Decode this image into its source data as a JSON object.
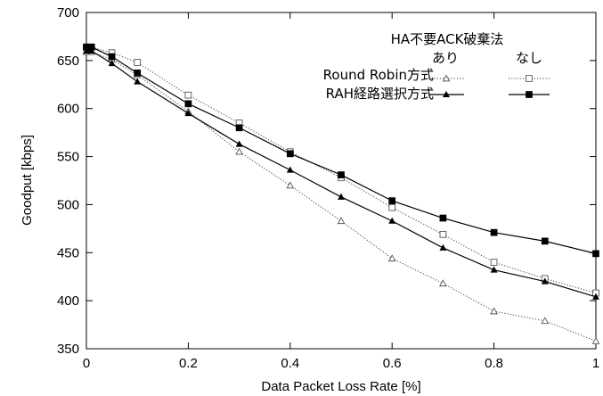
{
  "chart_data": {
    "type": "line",
    "xlabel": "Data Packet Loss Rate [%]",
    "ylabel": "Goodput [kbps]",
    "xlim": [
      0,
      1
    ],
    "ylim": [
      350,
      700
    ],
    "xticks": [
      0,
      0.2,
      0.4,
      0.6,
      0.8,
      1
    ],
    "xtick_labels": [
      "0",
      "0.2",
      "0.4",
      "0.6",
      "0.8",
      "1"
    ],
    "yticks": [
      350,
      400,
      450,
      500,
      550,
      600,
      650,
      700
    ],
    "ytick_labels": [
      "350",
      "400",
      "450",
      "500",
      "550",
      "600",
      "650",
      "700"
    ],
    "grid": false,
    "legend": {
      "placement": "top-right",
      "header": "HA不要ACK破棄法",
      "col_ari": "あり",
      "col_nashi": "なし",
      "row_rr": "Round Robin方式",
      "row_rah": "RAH経路選択方式"
    },
    "series": [
      {
        "key": "rr_ari",
        "line": "dotted",
        "marker": "triangle-open",
        "x": [
          0,
          0.01,
          0.05,
          0.1,
          0.2,
          0.3,
          0.4,
          0.5,
          0.6,
          0.7,
          0.8,
          0.9,
          1.0
        ],
        "y": [
          659,
          659,
          651,
          635,
          597,
          555,
          520,
          483,
          444,
          418,
          389,
          379,
          358
        ]
      },
      {
        "key": "rr_nashi",
        "line": "dotted",
        "marker": "square-open",
        "x": [
          0,
          0.01,
          0.05,
          0.1,
          0.2,
          0.3,
          0.4,
          0.5,
          0.6,
          0.7,
          0.8,
          0.9,
          1.0
        ],
        "y": [
          664,
          664,
          658,
          648,
          614,
          585,
          555,
          528,
          497,
          469,
          440,
          423,
          408
        ]
      },
      {
        "key": "rah_ari",
        "line": "solid",
        "marker": "triangle-filled",
        "x": [
          0,
          0.01,
          0.05,
          0.1,
          0.2,
          0.3,
          0.4,
          0.5,
          0.6,
          0.7,
          0.8,
          0.9,
          1.0
        ],
        "y": [
          660,
          660,
          647,
          628,
          595,
          563,
          536,
          508,
          483,
          455,
          432,
          420,
          404
        ]
      },
      {
        "key": "rah_nashi",
        "line": "solid",
        "marker": "square-filled",
        "x": [
          0,
          0.01,
          0.05,
          0.1,
          0.2,
          0.3,
          0.4,
          0.5,
          0.6,
          0.7,
          0.8,
          0.9,
          1.0
        ],
        "y": [
          664,
          664,
          654,
          637,
          605,
          580,
          553,
          531,
          504,
          486,
          471,
          462,
          449
        ]
      }
    ]
  }
}
